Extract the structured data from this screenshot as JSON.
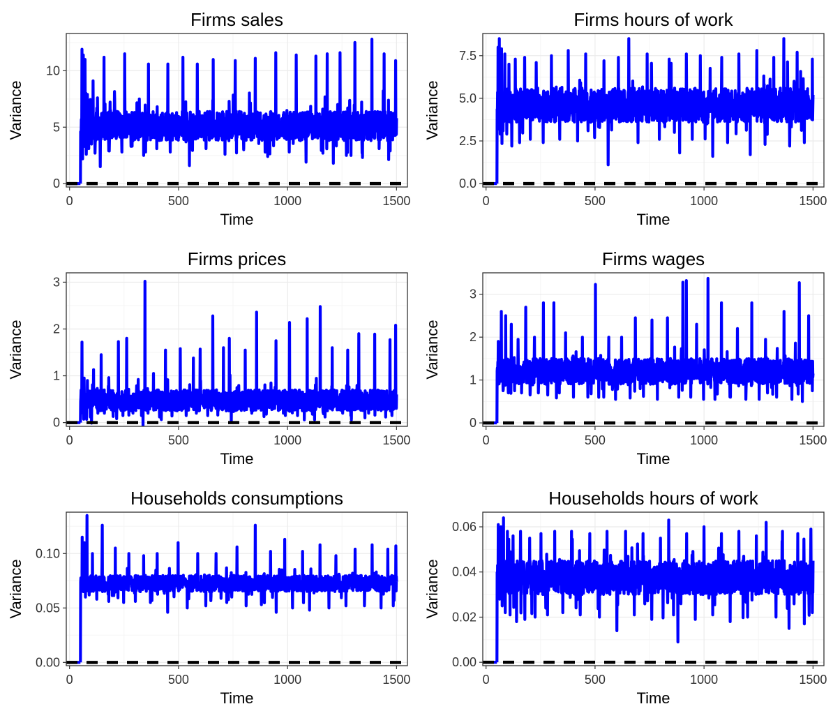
{
  "colors": {
    "series": "#0000ff",
    "reference": "#000000",
    "grid_major": "#ebebeb",
    "grid_minor": "#f5f5f5",
    "frame": "#333333"
  },
  "chart_data": [
    {
      "type": "line",
      "title": "Firms sales",
      "xlabel": "Time",
      "ylabel": "Variance",
      "xlim": [
        -15,
        1550
      ],
      "ylim": [
        -0.3,
        13.3
      ],
      "xticks": [
        0,
        500,
        1000,
        1500
      ],
      "yticks": [
        0,
        5,
        10
      ],
      "ytick_labels": [
        "0",
        "5",
        "10"
      ],
      "grid": true,
      "reference_line": {
        "y": 0,
        "style": "dashed"
      },
      "series": [
        {
          "start": 50,
          "x": [
            50,
            57,
            60,
            63,
            67,
            71,
            77,
            82,
            88,
            94,
            101,
            108,
            117,
            128,
            141,
            158,
            180,
            207,
            240,
            253,
            282,
            320,
            340,
            362,
            400,
            451,
            462,
            520,
            550,
            586,
            626,
            659,
            713,
            760,
            799,
            852,
            909,
            946,
            1008,
            1040,
            1085,
            1130,
            1162,
            1182,
            1210,
            1241,
            1270,
            1309,
            1342,
            1387,
            1420,
            1443,
            1471,
            1496,
            1500
          ],
          "values": [
            0,
            11.9,
            2.2,
            11.4,
            3.3,
            11.0,
            2.6,
            7.9,
            3.1,
            6.8,
            3.5,
            9.1,
            2.7,
            7.6,
            1.5,
            11.2,
            2.9,
            7.4,
            2.8,
            11.5,
            3.3,
            7.5,
            2.5,
            10.6,
            3.1,
            10.6,
            2.8,
            11.2,
            1.6,
            10.6,
            3.1,
            11.0,
            2.6,
            10.9,
            3.0,
            11.1,
            2.4,
            11.6,
            2.8,
            11.4,
            1.9,
            11.3,
            2.7,
            11.5,
            1.8,
            11.6,
            2.5,
            12.5,
            2.7,
            12.8,
            3.1,
            11.5,
            2.9,
            10.9,
            5.8
          ],
          "band": [
            3.8,
            6.4
          ]
        }
      ]
    },
    {
      "type": "line",
      "title": "Firms hours of work",
      "xlabel": "Time",
      "ylabel": "Variance",
      "xlim": [
        -15,
        1550
      ],
      "ylim": [
        -0.2,
        8.8
      ],
      "xticks": [
        0,
        500,
        1000,
        1500
      ],
      "yticks": [
        0,
        2.5,
        5,
        7.5
      ],
      "ytick_labels": [
        "0.0",
        "2.5",
        "5.0",
        "7.5"
      ],
      "grid": true,
      "reference_line": {
        "y": 0,
        "style": "dashed"
      },
      "series": [
        {
          "start": 50,
          "x": [
            50,
            55,
            58,
            61,
            65,
            71,
            78,
            86,
            95,
            105,
            118,
            134,
            154,
            177,
            203,
            230,
            262,
            300,
            338,
            377,
            420,
            457,
            498,
            541,
            560,
            607,
            655,
            697,
            739,
            795,
            840,
            888,
            919,
            946,
            983,
            1040,
            1081,
            1108,
            1160,
            1212,
            1242,
            1280,
            1320,
            1366,
            1393,
            1427,
            1460,
            1497,
            1500
          ],
          "values": [
            0,
            8.0,
            3.2,
            8.5,
            2.9,
            7.9,
            3.1,
            7.6,
            2.9,
            7.0,
            2.2,
            7.3,
            2.4,
            7.4,
            2.6,
            7.1,
            2.4,
            7.5,
            2.6,
            7.8,
            2.5,
            7.6,
            2.7,
            7.2,
            1.1,
            7.4,
            8.5,
            2.4,
            7.6,
            2.6,
            7.3,
            1.8,
            7.6,
            2.6,
            7.5,
            1.6,
            7.4,
            2.4,
            7.6,
            1.7,
            7.8,
            2.3,
            7.4,
            8.5,
            2.2,
            7.7,
            2.4,
            7.3,
            5.2
          ],
          "band": [
            3.6,
            5.6
          ]
        }
      ]
    },
    {
      "type": "line",
      "title": "Firms prices",
      "xlabel": "Time",
      "ylabel": "Variance",
      "xlim": [
        -15,
        1550
      ],
      "ylim": [
        -0.08,
        3.2
      ],
      "xticks": [
        0,
        500,
        1000,
        1500
      ],
      "yticks": [
        0,
        1,
        2,
        3
      ],
      "ytick_labels": [
        "0",
        "1",
        "2",
        "3"
      ],
      "grid": true,
      "reference_line": {
        "y": 0,
        "style": "dashed"
      },
      "series": [
        {
          "start": 50,
          "x": [
            50,
            57,
            62,
            67,
            75,
            82,
            95,
            110,
            130,
            145,
            160,
            180,
            200,
            224,
            245,
            262,
            291,
            315,
            330,
            346,
            360,
            385,
            413,
            440,
            470,
            508,
            535,
            568,
            582,
            599,
            634,
            657,
            680,
            706,
            719,
            733,
            790,
            806,
            836,
            858,
            903,
            947,
            981,
            1009,
            1046,
            1090,
            1114,
            1150,
            1172,
            1205,
            1253,
            1276,
            1290,
            1327,
            1372,
            1400,
            1450,
            1470,
            1490,
            1496,
            1500
          ],
          "values": [
            0,
            1.72,
            0.2,
            0.95,
            0.25,
            0.9,
            0.12,
            1.13,
            0.2,
            1.45,
            0.2,
            0.96,
            0.13,
            1.73,
            0.15,
            1.8,
            0.2,
            0.92,
            0.15,
            3.02,
            0.2,
            1.05,
            0.12,
            1.55,
            0.14,
            1.58,
            0.15,
            1.38,
            0.2,
            1.57,
            0.15,
            2.28,
            0.16,
            1.6,
            0.25,
            1.8,
            0.3,
            1.55,
            0.2,
            2.36,
            0.18,
            1.75,
            0.2,
            2.14,
            0.15,
            2.22,
            0.18,
            2.48,
            0.12,
            1.6,
            0.2,
            1.55,
            0.15,
            1.9,
            0.2,
            1.89,
            0.12,
            1.77,
            0.3,
            2.08,
            0.6
          ],
          "band": [
            0.25,
            0.7
          ]
        }
      ]
    },
    {
      "type": "line",
      "title": "Firms wages",
      "xlabel": "Time",
      "ylabel": "Variance",
      "xlim": [
        -15,
        1550
      ],
      "ylim": [
        -0.08,
        3.5
      ],
      "xticks": [
        0,
        500,
        1000,
        1500
      ],
      "yticks": [
        0,
        1,
        2,
        3
      ],
      "ytick_labels": [
        "0",
        "1",
        "2",
        "3"
      ],
      "grid": true,
      "reference_line": {
        "y": 0,
        "style": "dashed"
      },
      "series": [
        {
          "start": 50,
          "x": [
            50,
            56,
            62,
            70,
            78,
            90,
            102,
            116,
            131,
            147,
            163,
            182,
            203,
            222,
            240,
            263,
            283,
            311,
            336,
            365,
            401,
            442,
            482,
            502,
            540,
            563,
            594,
            622,
            661,
            685,
            722,
            761,
            786,
            832,
            884,
            903,
            919,
            939,
            966,
            998,
            1018,
            1050,
            1080,
            1121,
            1153,
            1192,
            1219,
            1253,
            1282,
            1333,
            1367,
            1403,
            1437,
            1451,
            1480,
            1497,
            1500
          ],
          "values": [
            0,
            1.9,
            1.0,
            2.6,
            0.75,
            2.5,
            0.7,
            2.3,
            0.75,
            1.95,
            0.7,
            2.7,
            0.75,
            2.0,
            0.7,
            2.8,
            0.65,
            2.8,
            0.7,
            2.1,
            0.6,
            2.0,
            0.68,
            3.23,
            0.6,
            2.0,
            0.55,
            2.0,
            0.58,
            2.45,
            0.62,
            2.4,
            0.55,
            2.45,
            0.6,
            3.28,
            3.32,
            0.6,
            2.3,
            0.55,
            3.37,
            0.55,
            2.8,
            0.6,
            2.2,
            0.55,
            2.8,
            0.55,
            1.95,
            0.6,
            2.6,
            0.55,
            3.27,
            0.5,
            2.5,
            0.75,
            1.15
          ],
          "band": [
            0.9,
            1.5
          ]
        }
      ]
    },
    {
      "type": "line",
      "title": "Households consumptions",
      "xlabel": "Time",
      "ylabel": "Variance",
      "xlim": [
        -15,
        1550
      ],
      "ylim": [
        -0.003,
        0.138
      ],
      "xticks": [
        0,
        500,
        1000,
        1500
      ],
      "yticks": [
        0,
        0.05,
        0.1
      ],
      "ytick_labels": [
        "0.00",
        "0.05",
        "0.10"
      ],
      "grid": true,
      "reference_line": {
        "y": 0,
        "style": "dashed"
      },
      "series": [
        {
          "start": 50,
          "x": [
            50,
            58,
            63,
            68,
            73,
            80,
            90,
            105,
            125,
            150,
            180,
            210,
            248,
            272,
            302,
            340,
            371,
            402,
            450,
            498,
            540,
            588,
            625,
            672,
            721,
            768,
            810,
            852,
            880,
            922,
            948,
            987,
            1023,
            1069,
            1101,
            1149,
            1190,
            1222,
            1268,
            1310,
            1353,
            1388,
            1429,
            1460,
            1485,
            1497,
            1500
          ],
          "values": [
            0,
            0.115,
            0.065,
            0.11,
            0.06,
            0.135,
            0.062,
            0.1,
            0.058,
            0.126,
            0.056,
            0.105,
            0.055,
            0.1,
            0.056,
            0.098,
            0.055,
            0.1,
            0.046,
            0.11,
            0.05,
            0.1,
            0.052,
            0.1,
            0.055,
            0.106,
            0.052,
            0.126,
            0.053,
            0.102,
            0.046,
            0.113,
            0.05,
            0.102,
            0.048,
            0.108,
            0.05,
            0.098,
            0.052,
            0.104,
            0.052,
            0.108,
            0.05,
            0.104,
            0.052,
            0.107,
            0.074
          ],
          "band": [
            0.065,
            0.08
          ]
        }
      ]
    },
    {
      "type": "line",
      "title": "Households hours of work",
      "xlabel": "Time",
      "ylabel": "Variance",
      "xlim": [
        -15,
        1550
      ],
      "ylim": [
        -0.0015,
        0.0665
      ],
      "xticks": [
        0,
        500,
        1000,
        1500
      ],
      "yticks": [
        0,
        0.02,
        0.04,
        0.06
      ],
      "ytick_labels": [
        "0.00",
        "0.02",
        "0.04",
        "0.06"
      ],
      "grid": true,
      "reference_line": {
        "y": 0,
        "style": "dashed"
      },
      "series": [
        {
          "start": 50,
          "x": [
            50,
            56,
            62,
            68,
            74,
            80,
            88,
            98,
            110,
            124,
            140,
            158,
            178,
            200,
            225,
            252,
            282,
            315,
            352,
            392,
            432,
            476,
            520,
            555,
            600,
            640,
            680,
            720,
            760,
            800,
            838,
            860,
            880,
            920,
            960,
            1000,
            1040,
            1080,
            1120,
            1160,
            1200,
            1240,
            1285,
            1330,
            1360,
            1390,
            1430,
            1460,
            1490,
            1497,
            1500
          ],
          "values": [
            0,
            0.061,
            0.028,
            0.06,
            0.025,
            0.064,
            0.022,
            0.058,
            0.021,
            0.056,
            0.018,
            0.058,
            0.019,
            0.055,
            0.02,
            0.057,
            0.021,
            0.058,
            0.022,
            0.058,
            0.021,
            0.057,
            0.02,
            0.058,
            0.014,
            0.058,
            0.021,
            0.057,
            0.019,
            0.055,
            0.063,
            0.021,
            0.009,
            0.057,
            0.019,
            0.06,
            0.021,
            0.057,
            0.018,
            0.058,
            0.02,
            0.056,
            0.062,
            0.02,
            0.058,
            0.015,
            0.057,
            0.017,
            0.059,
            0.022,
            0.045
          ],
          "band": [
            0.03,
            0.045
          ]
        }
      ]
    }
  ]
}
